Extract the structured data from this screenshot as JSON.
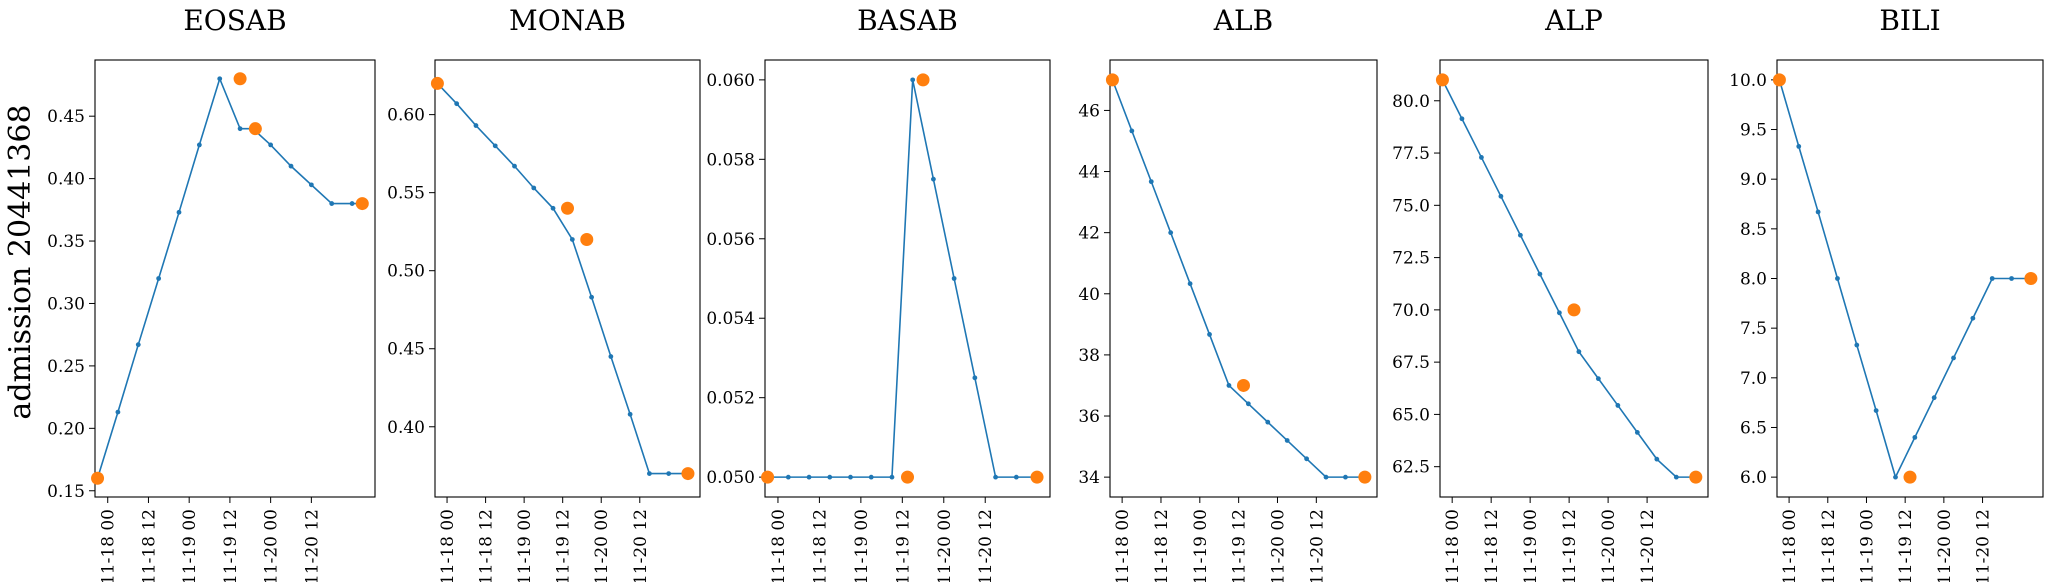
{
  "figure": {
    "ylabel": "admission 20441368"
  },
  "chart_data": [
    {
      "type": "line",
      "title": "EOSAB",
      "xlabel": "",
      "ylabel": "",
      "x_ticks": [
        "11-18 00",
        "11-18 12",
        "11-19 00",
        "11-19 12",
        "11-20 00",
        "11-20 12"
      ],
      "x_range": [
        -0.5,
        54.5
      ],
      "ylim": [
        0.145,
        0.495
      ],
      "y_ticks": [
        0.15,
        0.2,
        0.25,
        0.3,
        0.35,
        0.4,
        0.45
      ],
      "y_tick_labels": [
        "0.15",
        "0.20",
        "0.25",
        "0.30",
        "0.35",
        "0.40",
        "0.45"
      ],
      "series": [
        {
          "role": "interpolated",
          "x": [
            0,
            4,
            8,
            12,
            16,
            20,
            24,
            28,
            30.5,
            34,
            38,
            42,
            46,
            50,
            52
          ],
          "y": [
            0.16,
            0.213,
            0.267,
            0.32,
            0.373,
            0.427,
            0.48,
            0.44,
            0.44,
            0.427,
            0.41,
            0.395,
            0.38,
            0.38,
            0.38
          ]
        },
        {
          "role": "observed",
          "x": [
            0,
            28,
            31,
            52
          ],
          "y": [
            0.16,
            0.48,
            0.44,
            0.38
          ]
        }
      ],
      "grid": false,
      "legend": null
    },
    {
      "type": "line",
      "title": "MONAB",
      "xlabel": "",
      "ylabel": "",
      "x_ticks": [
        "11-18 00",
        "11-18 12",
        "11-19 00",
        "11-19 12",
        "11-20 00",
        "11-20 12"
      ],
      "x_range": [
        -0.5,
        54.5
      ],
      "ylim": [
        0.355,
        0.635
      ],
      "y_ticks": [
        0.4,
        0.45,
        0.5,
        0.55,
        0.6
      ],
      "y_tick_labels": [
        "0.40",
        "0.45",
        "0.50",
        "0.55",
        "0.60"
      ],
      "series": [
        {
          "role": "interpolated",
          "x": [
            0,
            4,
            8,
            12,
            16,
            20,
            24,
            28,
            32,
            36,
            40,
            44,
            48,
            52
          ],
          "y": [
            0.62,
            0.607,
            0.593,
            0.58,
            0.567,
            0.553,
            0.54,
            0.52,
            0.483,
            0.445,
            0.408,
            0.37,
            0.37,
            0.37
          ]
        },
        {
          "role": "observed",
          "x": [
            0,
            27,
            31,
            52
          ],
          "y": [
            0.62,
            0.54,
            0.52,
            0.37
          ]
        }
      ],
      "grid": false,
      "legend": null
    },
    {
      "type": "line",
      "title": "BASAB",
      "xlabel": "",
      "ylabel": "",
      "x_ticks": [
        "11-18 00",
        "11-18 12",
        "11-19 00",
        "11-19 12",
        "11-20 00",
        "11-20 12"
      ],
      "x_range": [
        -0.5,
        54.5
      ],
      "ylim": [
        0.0495,
        0.0605
      ],
      "y_ticks": [
        0.05,
        0.052,
        0.054,
        0.056,
        0.058,
        0.06
      ],
      "y_tick_labels": [
        "0.050",
        "0.052",
        "0.054",
        "0.056",
        "0.058",
        "0.060"
      ],
      "series": [
        {
          "role": "interpolated",
          "x": [
            0,
            4,
            8,
            12,
            16,
            20,
            24,
            28,
            32,
            36,
            40,
            44,
            48,
            52
          ],
          "y": [
            0.05,
            0.05,
            0.05,
            0.05,
            0.05,
            0.05,
            0.05,
            0.06,
            0.0575,
            0.055,
            0.0525,
            0.05,
            0.05,
            0.05
          ]
        },
        {
          "role": "observed",
          "x": [
            0,
            27,
            30,
            52
          ],
          "y": [
            0.05,
            0.05,
            0.06,
            0.05
          ]
        }
      ],
      "grid": false,
      "legend": null
    },
    {
      "type": "line",
      "title": "ALB",
      "xlabel": "",
      "ylabel": "",
      "x_ticks": [
        "11-18 00",
        "11-18 12",
        "11-19 00",
        "11-19 12",
        "11-20 00",
        "11-20 12"
      ],
      "x_range": [
        -0.5,
        54.5
      ],
      "ylim": [
        33.35,
        47.65
      ],
      "y_ticks": [
        34,
        36,
        38,
        40,
        42,
        44,
        46
      ],
      "y_tick_labels": [
        "34",
        "36",
        "38",
        "40",
        "42",
        "44",
        "46"
      ],
      "series": [
        {
          "role": "interpolated",
          "x": [
            0,
            4,
            8,
            12,
            16,
            20,
            24,
            28,
            32,
            36,
            40,
            44,
            48,
            52
          ],
          "y": [
            47,
            45.33,
            43.67,
            42,
            40.33,
            38.67,
            37,
            36.4,
            35.8,
            35.2,
            34.6,
            34,
            34,
            34
          ]
        },
        {
          "role": "observed",
          "x": [
            0,
            27,
            52
          ],
          "y": [
            47,
            37,
            34
          ]
        }
      ],
      "grid": false,
      "legend": null
    },
    {
      "type": "line",
      "title": "ALP",
      "xlabel": "",
      "ylabel": "",
      "x_ticks": [
        "11-18 00",
        "11-18 12",
        "11-19 00",
        "11-19 12",
        "11-20 00",
        "11-20 12"
      ],
      "x_range": [
        -0.5,
        54.5
      ],
      "ylim": [
        61.05,
        81.95
      ],
      "y_ticks": [
        62.5,
        65,
        67.5,
        70,
        72.5,
        75,
        77.5,
        80
      ],
      "y_tick_labels": [
        "62.5",
        "65.0",
        "67.5",
        "70.0",
        "72.5",
        "75.0",
        "77.5",
        "80.0"
      ],
      "series": [
        {
          "role": "interpolated",
          "x": [
            0,
            4,
            8,
            12,
            16,
            20,
            24,
            28,
            32,
            36,
            40,
            44,
            48,
            52
          ],
          "y": [
            81,
            79.14,
            77.29,
            75.43,
            73.57,
            71.71,
            69.86,
            68.0,
            66.71,
            65.43,
            64.14,
            62.86,
            62,
            62
          ]
        },
        {
          "role": "observed",
          "x": [
            0,
            27,
            52
          ],
          "y": [
            81,
            70,
            62
          ]
        }
      ],
      "grid": false,
      "legend": null
    },
    {
      "type": "line",
      "title": "BILI",
      "xlabel": "",
      "ylabel": "",
      "x_ticks": [
        "11-18 00",
        "11-18 12",
        "11-19 00",
        "11-19 12",
        "11-20 00",
        "11-20 12"
      ],
      "x_range": [
        -0.5,
        54.5
      ],
      "ylim": [
        5.8,
        10.2
      ],
      "y_ticks": [
        6.0,
        6.5,
        7.0,
        7.5,
        8.0,
        8.5,
        9.0,
        9.5,
        10.0
      ],
      "y_tick_labels": [
        "6.0",
        "6.5",
        "7.0",
        "7.5",
        "8.0",
        "8.5",
        "9.0",
        "9.5",
        "10.0"
      ],
      "series": [
        {
          "role": "interpolated",
          "x": [
            0,
            4,
            8,
            12,
            16,
            20,
            24,
            28,
            32,
            36,
            40,
            44,
            48,
            52
          ],
          "y": [
            10,
            9.33,
            8.67,
            8.0,
            7.33,
            6.67,
            6.0,
            6.4,
            6.8,
            7.2,
            7.6,
            8.0,
            8.0,
            8.0
          ]
        },
        {
          "role": "observed",
          "x": [
            0,
            27,
            52
          ],
          "y": [
            10,
            6,
            8
          ]
        }
      ],
      "grid": false,
      "legend": null
    }
  ]
}
